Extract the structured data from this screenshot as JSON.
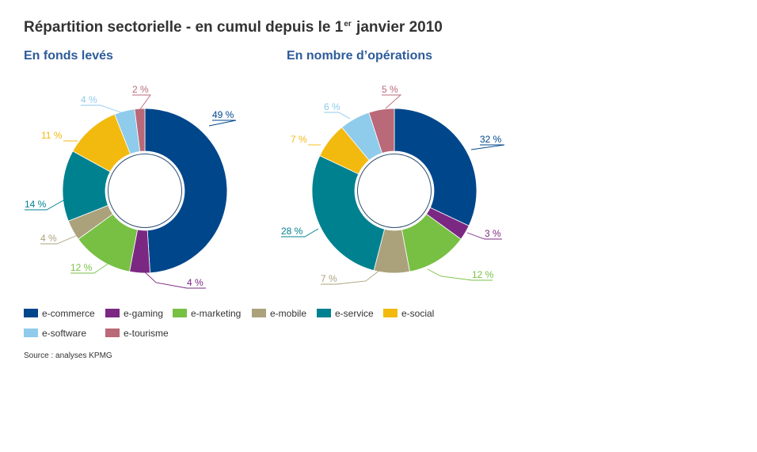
{
  "title": {
    "prefix": "Répartition sectorielle - en cumul depuis le 1",
    "sup": "er",
    "suffix": " janvier 2010"
  },
  "source": "Source : analyses KPMG",
  "colors": {
    "e-commerce": "#00468b",
    "e-gaming": "#7b2883",
    "e-marketing": "#78c044",
    "e-mobile": "#aba27c",
    "e-service": "#00818f",
    "e-social": "#f2b90f",
    "e-software": "#8fcbeb",
    "e-tourisme": "#b96978"
  },
  "chart_data": [
    {
      "type": "pie",
      "title": "En fonds levés",
      "categories": [
        "e-commerce",
        "e-gaming",
        "e-marketing",
        "e-mobile",
        "e-service",
        "e-social",
        "e-software",
        "e-tourisme"
      ],
      "values": [
        49,
        4,
        12,
        4,
        14,
        11,
        4,
        2
      ],
      "labels": [
        "49 %",
        "4 %",
        "12 %",
        "4 %",
        "14 %",
        "11 %",
        "4 %",
        "2 %"
      ]
    },
    {
      "type": "pie",
      "title": "En nombre d’opérations",
      "categories": [
        "e-commerce",
        "e-gaming",
        "e-marketing",
        "e-mobile",
        "e-service",
        "e-social",
        "e-software",
        "e-tourisme"
      ],
      "values": [
        32,
        3,
        12,
        7,
        28,
        7,
        6,
        5
      ],
      "labels": [
        "32 %",
        "3 %",
        "12 %",
        "7 %",
        "28 %",
        "7 %",
        "6 %",
        "5 %"
      ]
    }
  ],
  "legend": [
    {
      "key": "e-commerce",
      "label": "e-commerce"
    },
    {
      "key": "e-gaming",
      "label": "e-gaming"
    },
    {
      "key": "e-marketing",
      "label": "e-marketing"
    },
    {
      "key": "e-mobile",
      "label": "e-mobile"
    },
    {
      "key": "e-service",
      "label": "e-service"
    },
    {
      "key": "e-social",
      "label": "e-social"
    },
    {
      "key": "e-software",
      "label": "e-software"
    },
    {
      "key": "e-tourisme",
      "label": "e-tourisme"
    }
  ]
}
